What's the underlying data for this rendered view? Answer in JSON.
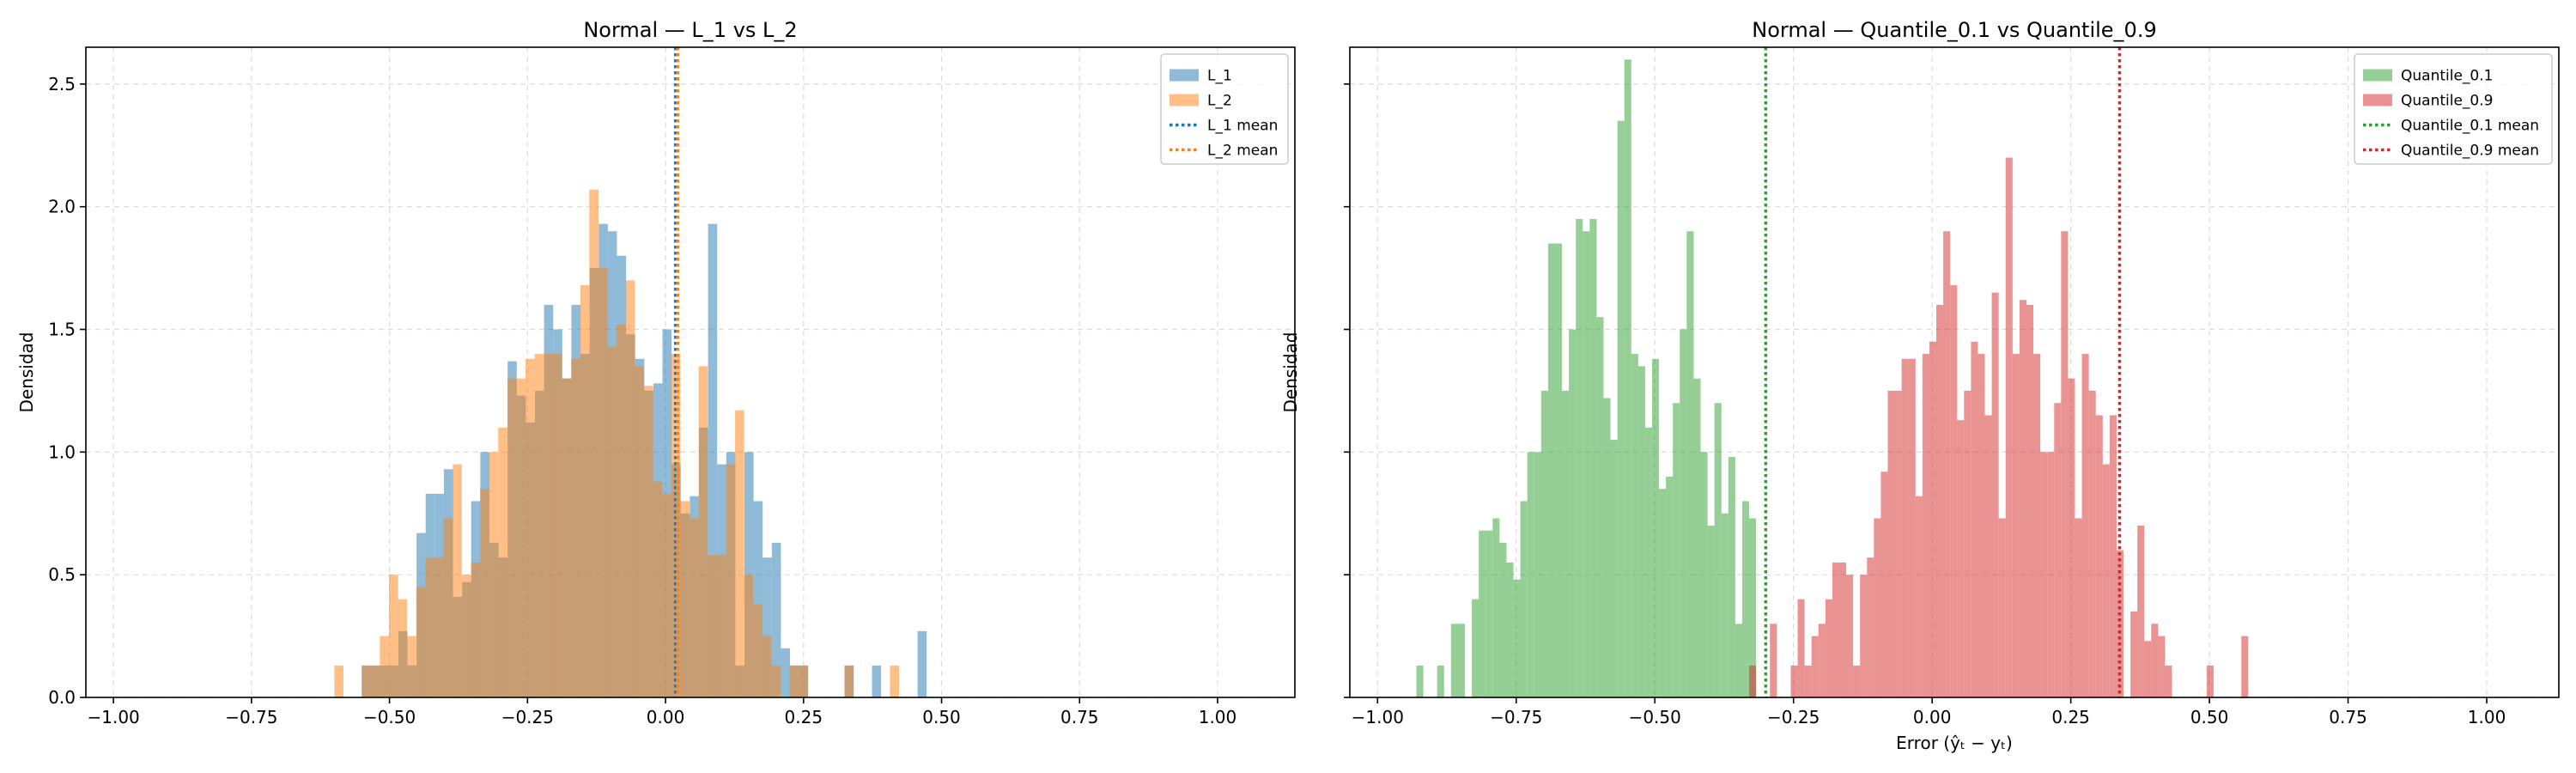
{
  "chart_data": [
    {
      "type": "histogram",
      "title": "Normal — L_1 vs L_2",
      "xlabel": "",
      "ylabel": "Densidad",
      "xlim": [
        -1.05,
        1.14
      ],
      "ylim": [
        0,
        2.65
      ],
      "xticks": [
        -1.0,
        -0.75,
        -0.5,
        -0.25,
        0.0,
        0.25,
        0.5,
        0.75,
        1.0
      ],
      "xtick_labels": [
        "−1.00",
        "−0.75",
        "−0.50",
        "−0.25",
        "0.00",
        "0.25",
        "0.50",
        "0.75",
        "1.00"
      ],
      "yticks": [
        0.0,
        0.5,
        1.0,
        1.5,
        2.0,
        2.5
      ],
      "ytick_labels": [
        "0.0",
        "0.5",
        "1.0",
        "1.5",
        "2.0",
        "2.5"
      ],
      "grid": true,
      "legend_position": "top-right",
      "series": [
        {
          "name": "L_1",
          "color": "#1f77b4",
          "alpha": 0.5,
          "bin_start": -0.55,
          "bin_width": 0.0165,
          "values": [
            0.13,
            0.13,
            0.13,
            0.13,
            0.27,
            0.13,
            0.67,
            0.83,
            0.83,
            0.93,
            0.41,
            0.47,
            0.8,
            1.0,
            0.63,
            0.57,
            1.37,
            1.23,
            1.12,
            1.25,
            1.6,
            1.5,
            1.3,
            1.6,
            1.4,
            1.75,
            1.93,
            1.9,
            1.8,
            1.48,
            1.38,
            1.25,
            1.28,
            1.5,
            0.95,
            0.75,
            0.82,
            1.1,
            1.93,
            0.95,
            1.0,
            0.13,
            1.0,
            0.8,
            0.57,
            0.63,
            0.2,
            0.13,
            0.13,
            0.0,
            0.0,
            0.0,
            0.0,
            0.13,
            0.0,
            0.0,
            0.13,
            0.0,
            0.0,
            0.0,
            0.0,
            0.27
          ]
        },
        {
          "name": "L_2",
          "color": "#ff7f0e",
          "alpha": 0.5,
          "bin_start": -0.6,
          "bin_width": 0.0165,
          "values": [
            0.13,
            0.0,
            0.0,
            0.13,
            0.13,
            0.25,
            0.5,
            0.4,
            0.25,
            0.45,
            0.57,
            0.57,
            0.73,
            0.95,
            0.5,
            0.55,
            0.85,
            1.0,
            1.1,
            1.3,
            1.3,
            1.38,
            1.4,
            1.4,
            1.4,
            1.3,
            1.38,
            1.68,
            2.07,
            1.75,
            1.43,
            1.52,
            1.7,
            1.35,
            1.27,
            0.88,
            0.83,
            1.4,
            0.8,
            0.73,
            1.35,
            0.58,
            0.58,
            0.95,
            1.17,
            0.5,
            0.38,
            0.25,
            0.13,
            0.0,
            0.13,
            0.13,
            0.0,
            0.0,
            0.0,
            0.0,
            0.13,
            0.0,
            0.0,
            0.0,
            0.0,
            0.13
          ]
        }
      ],
      "mean_lines": [
        {
          "name": "L_1 mean",
          "x": 0.018,
          "color": "#1f77b4"
        },
        {
          "name": "L_2 mean",
          "x": 0.022,
          "color": "#ff7f0e"
        }
      ]
    },
    {
      "type": "histogram",
      "title": "Normal — Quantile_0.1 vs Quantile_0.9",
      "xlabel": "Error (ŷₜ − yₜ)",
      "ylabel": "Densidad",
      "xlim": [
        -1.05,
        1.13
      ],
      "ylim": [
        0,
        2.65
      ],
      "xticks": [
        -1.0,
        -0.75,
        -0.5,
        -0.25,
        0.0,
        0.25,
        0.5,
        0.75,
        1.0
      ],
      "xtick_labels": [
        "−1.00",
        "−0.75",
        "−0.50",
        "−0.25",
        "0.00",
        "0.25",
        "0.50",
        "0.75",
        "1.00"
      ],
      "yticks": [
        0.0,
        0.5,
        1.0,
        1.5,
        2.0,
        2.5
      ],
      "ytick_labels": [
        "",
        "",
        "",
        "",
        "",
        ""
      ],
      "grid": true,
      "legend_position": "top-right",
      "series": [
        {
          "name": "Quantile_0.1",
          "color": "#2ca02c",
          "alpha": 0.5,
          "bin_start": -0.93,
          "bin_width": 0.0125,
          "values": [
            0.13,
            0.0,
            0.0,
            0.13,
            0.0,
            0.3,
            0.3,
            0.0,
            0.4,
            0.68,
            0.68,
            0.73,
            0.63,
            0.55,
            0.48,
            0.8,
            1.0,
            1.0,
            1.25,
            1.85,
            1.85,
            1.25,
            1.5,
            1.95,
            1.9,
            1.95,
            1.55,
            1.22,
            1.05,
            2.35,
            2.6,
            1.4,
            1.35,
            1.1,
            1.38,
            0.85,
            0.9,
            1.2,
            1.5,
            1.9,
            1.3,
            1.0,
            0.7,
            1.2,
            0.75,
            0.98,
            0.3,
            0.8,
            0.73
          ]
        },
        {
          "name": "Quantile_0.9",
          "color": "#d62728",
          "alpha": 0.5,
          "bin_start": -0.33,
          "bin_width": 0.0125,
          "values": [
            0.13,
            0.0,
            0.0,
            0.3,
            0.0,
            0.0,
            0.13,
            0.4,
            0.13,
            0.25,
            0.3,
            0.4,
            0.55,
            0.55,
            0.5,
            0.13,
            0.5,
            0.57,
            0.73,
            0.92,
            1.25,
            1.25,
            1.38,
            1.38,
            0.82,
            1.4,
            1.45,
            1.6,
            1.9,
            1.68,
            1.13,
            1.25,
            1.45,
            1.4,
            1.15,
            1.65,
            0.73,
            2.2,
            1.4,
            1.62,
            1.6,
            1.4,
            1.0,
            1.0,
            1.2,
            1.9,
            1.3,
            0.73,
            1.4,
            1.25,
            1.15,
            0.95,
            1.15,
            0.6,
            0.0,
            0.35,
            0.7,
            0.23,
            0.3,
            0.25,
            0.13,
            0.0,
            0.0,
            0.0,
            0.0,
            0.0,
            0.13,
            0.0,
            0.0,
            0.0,
            0.0,
            0.25
          ]
        }
      ],
      "mean_lines": [
        {
          "name": "Quantile_0.1 mean",
          "x": -0.3,
          "color": "#2ca02c"
        },
        {
          "name": "Quantile_0.9 mean",
          "x": 0.338,
          "color": "#d62728"
        }
      ]
    }
  ]
}
